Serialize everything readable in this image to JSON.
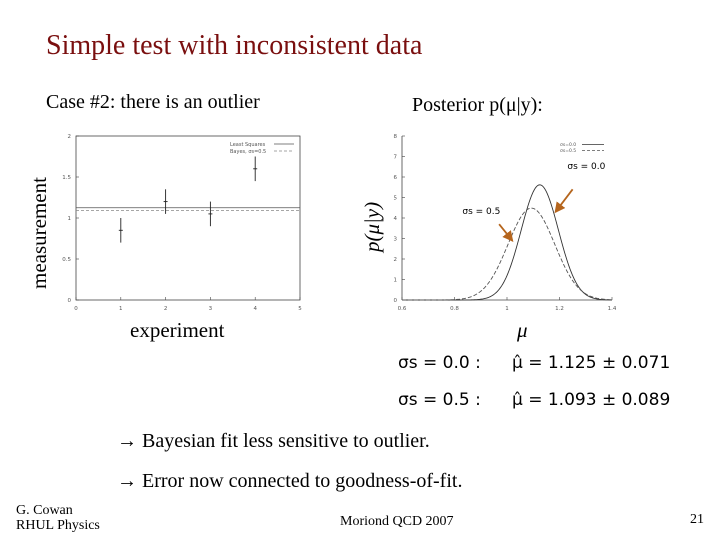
{
  "slide": {
    "title": "Simple test with inconsistent data",
    "case_label": "Case #2: there is an outlier",
    "posterior_label": "Posterior p(μ|y):"
  },
  "left_plot": {
    "ylabel": "measurement",
    "xlabel": "experiment",
    "legend": [
      "Least Squares",
      "Bayes, σs=0.5"
    ]
  },
  "right_plot": {
    "ylabel": "p(μ|y)",
    "xlabel": "μ",
    "legend": [
      "σs=0.0",
      "σs=0.5"
    ],
    "annotations": [
      "σs = 0.0",
      "σs = 0.5"
    ]
  },
  "results": [
    {
      "label": "σs = 0.0 :",
      "value": "μ̂ = 1.125 ± 0.071"
    },
    {
      "label": "σs = 0.5 :",
      "value": "μ̂ = 1.093 ± 0.089"
    }
  ],
  "bullets": [
    "→ Bayesian fit less sensitive to outlier.",
    "→ Error now connected to goodness-of-fit."
  ],
  "footer": {
    "author_line1": "G. Cowan",
    "author_line2": "RHUL Physics",
    "conference": "Moriond QCD 2007",
    "page_number": "21"
  },
  "chart_data": [
    {
      "type": "scatter",
      "x": [
        1,
        2,
        3,
        4
      ],
      "y": [
        0.85,
        1.2,
        1.05,
        1.6
      ],
      "yerr": [
        0.15,
        0.15,
        0.15,
        0.15
      ],
      "xlim": [
        0,
        5
      ],
      "ylim": [
        0,
        2
      ],
      "xticks": [
        0,
        1,
        2,
        3,
        4,
        5
      ],
      "yticks": [
        0,
        0.5,
        1,
        1.5,
        2
      ],
      "series": [
        {
          "name": "Least Squares",
          "fit_value": 1.125
        },
        {
          "name": "Bayes, σs=0.5",
          "fit_value": 1.093
        }
      ]
    },
    {
      "type": "line",
      "xlim": [
        0.6,
        1.4
      ],
      "ylim": [
        0,
        8
      ],
      "xticks": [
        0.6,
        0.8,
        1.0,
        1.2,
        1.4
      ],
      "yticks": [
        0,
        1,
        2,
        3,
        4,
        5,
        6,
        7,
        8
      ],
      "series": [
        {
          "name": "σs=0.0",
          "mean": 1.125,
          "sigma": 0.071
        },
        {
          "name": "σs=0.5",
          "mean": 1.093,
          "sigma": 0.089
        }
      ]
    }
  ]
}
